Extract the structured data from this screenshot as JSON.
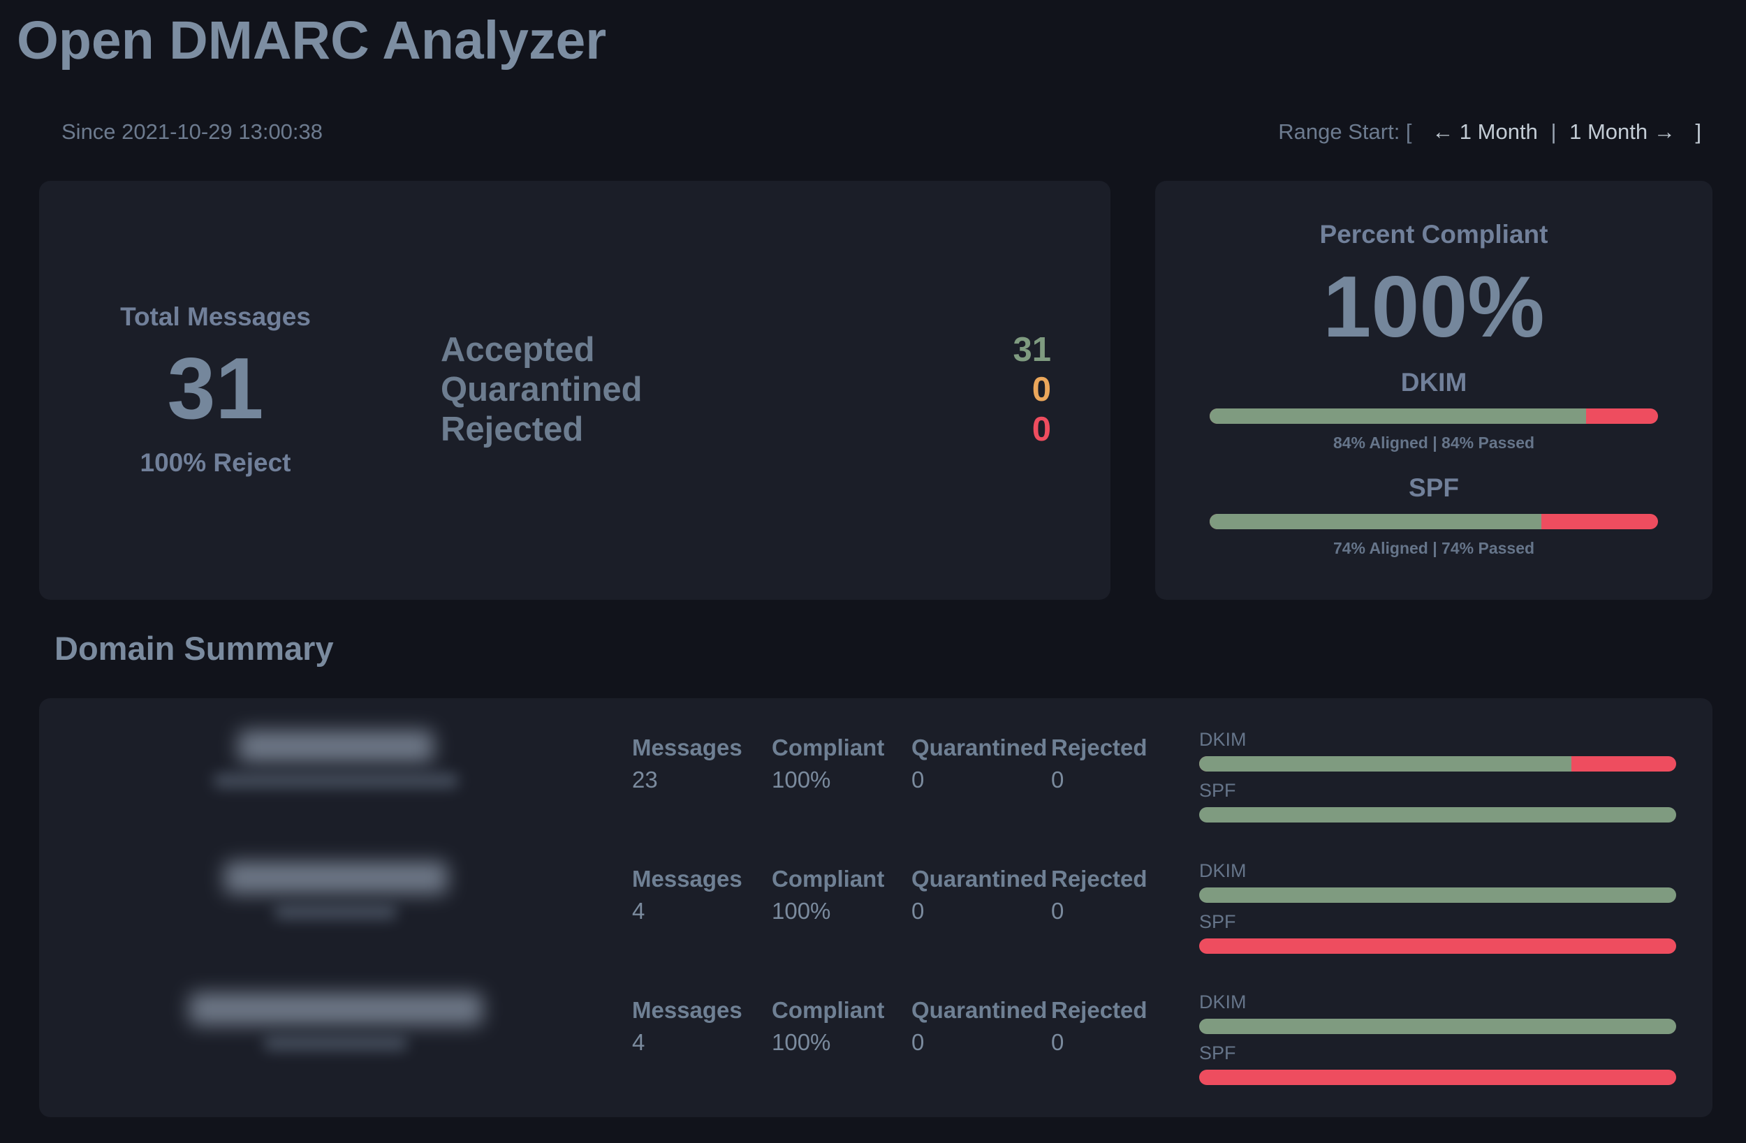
{
  "app": {
    "title": "Open DMARC Analyzer"
  },
  "subheader": {
    "since": "Since 2021-10-29 13:00:38",
    "range": {
      "label": "Range Start: [",
      "prev": "← 1 Month",
      "separator": "|",
      "next": "1 Month →",
      "close": "]"
    }
  },
  "overview": {
    "total_label": "Total Messages",
    "total_value": "31",
    "policy": "100% Reject",
    "verdicts": [
      {
        "label": "Accepted",
        "value": "31",
        "color": "#7f9b80"
      },
      {
        "label": "Quarantined",
        "value": "0",
        "color": "#eba75b"
      },
      {
        "label": "Rejected",
        "value": "0",
        "color": "#ee4d5f"
      }
    ]
  },
  "compliance": {
    "title": "Percent Compliant",
    "percent": "100%",
    "meters": [
      {
        "label": "DKIM",
        "green_pct": 84,
        "caption": "84% Aligned | 84% Passed"
      },
      {
        "label": "SPF",
        "green_pct": 74,
        "caption": "74% Aligned | 74% Passed"
      }
    ]
  },
  "domain_summary": {
    "heading": "Domain Summary",
    "columns": [
      "Messages",
      "Compliant",
      "Quarantined",
      "Rejected"
    ],
    "bar_labels": {
      "dkim": "DKIM",
      "spf": "SPF"
    },
    "rows": [
      {
        "domain": "",
        "domain_redacted": true,
        "values": [
          "23",
          "100%",
          "0",
          "0"
        ],
        "dkim_pass_pct": 78,
        "spf_pass_pct": 100
      },
      {
        "domain": "",
        "domain_redacted": true,
        "values": [
          "4",
          "100%",
          "0",
          "0"
        ],
        "dkim_pass_pct": 100,
        "spf_pass_pct": 0
      },
      {
        "domain": "",
        "domain_redacted": true,
        "values": [
          "4",
          "100%",
          "0",
          "0"
        ],
        "dkim_pass_pct": 100,
        "spf_pass_pct": 0
      }
    ]
  },
  "colors": {
    "page_bg": "#11131b",
    "card_bg": "#1b1e28",
    "heading_text": "#7d8ea2",
    "label_text": "#71809a",
    "pass_green": "#7f9b80",
    "quarantine_orange": "#eba75b",
    "fail_red": "#ee4d5f"
  }
}
